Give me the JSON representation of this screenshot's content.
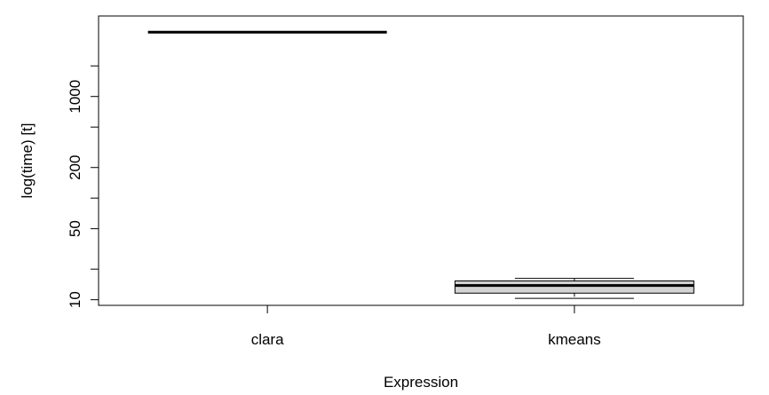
{
  "chart_data": {
    "type": "boxplot",
    "title": "",
    "xlabel": "Expression",
    "ylabel": "log(time) [t]",
    "y_scale": "log",
    "ylim": [
      8.8,
      6200
    ],
    "y_ticks": [
      10,
      20,
      50,
      100,
      200,
      500,
      1000,
      2000
    ],
    "y_tick_labels": [
      "10",
      "",
      "50",
      "",
      "200",
      "",
      "1000",
      ""
    ],
    "categories": [
      "clara",
      "kmeans"
    ],
    "boxes": [
      {
        "category": "clara",
        "min": 4300,
        "q1": 4300,
        "median": 4300,
        "q3": 4300,
        "max": 4300
      },
      {
        "category": "kmeans",
        "min": 10.3,
        "q1": 11.6,
        "median": 13.8,
        "q3": 15.3,
        "max": 16.2
      }
    ],
    "box_fill": "#d3d3d3",
    "grid": false
  }
}
